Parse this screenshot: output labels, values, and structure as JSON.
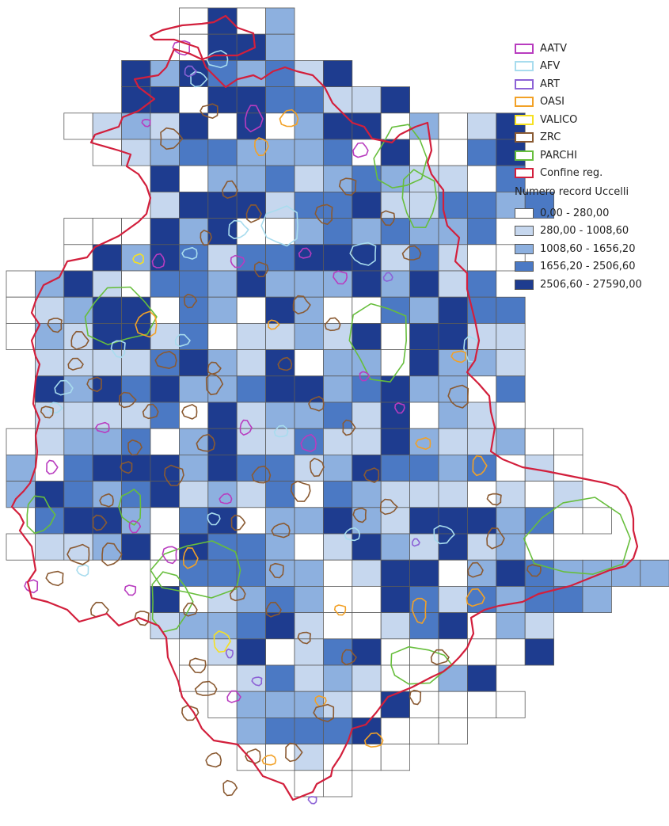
{
  "map": {
    "grid": {
      "rows": [
        {
          "start": 6,
          "values": "0402"
        },
        {
          "start": 6,
          "values": "0442"
        },
        {
          "start": 4,
          "values": "42432314"
        },
        {
          "start": 4,
          "values": "4404433114"
        },
        {
          "start": 2,
          "values": "0121404024402014"
        },
        {
          "start": 3,
          "values": "012332223040034"
        },
        {
          "start": 5,
          "values": "4022312321103"
        },
        {
          "start": 5,
          "values": "14441334113323"
        },
        {
          "start": 2,
          "values": "000424002323223"
        },
        {
          "start": 2,
          "values": "0424313344413100"
        },
        {
          "start": 0,
          "values": "02410332422242413"
        },
        {
          "start": 0,
          "values": "012440320420032433"
        },
        {
          "start": 0,
          "values": "021441301121404411"
        },
        {
          "start": 1,
          "values": "11113421402204221"
        },
        {
          "start": 1,
          "values": "42434223442342203"
        },
        {
          "start": 1,
          "values": "11113041223140210"
        },
        {
          "start": 0,
          "values": "01223024113114211200"
        },
        {
          "start": 0,
          "values": "20344424331243323010"
        },
        {
          "start": 0,
          "values": "24323412130321110101"
        },
        {
          "start": 1,
          "values": "34420340224214442300"
        },
        {
          "start": 0,
          "values": "0112404332014214120"
        },
        {
          "start": 5,
          "values": "033322014402432222"
        },
        {
          "start": 5,
          "values": "4012320043132332"
        },
        {
          "start": 5,
          "values": "12234100134021"
        },
        {
          "start": 6,
          "values": "0140134000004"
        },
        {
          "start": 6,
          "values": "00131210024"
        },
        {
          "start": 7,
          "values": "02221040000"
        },
        {
          "start": 8,
          "values": "23334000"
        },
        {
          "start": 8,
          "values": "001000"
        },
        {
          "start": 10,
          "values": "00"
        }
      ]
    },
    "class_colors": [
      "#ffffff",
      "#c6d7ee",
      "#8db0df",
      "#4b79c4",
      "#1e3c8f"
    ],
    "layer_colors": {
      "AATV": "#b83cbf",
      "AFV": "#a8dcee",
      "ART": "#8c62d6",
      "OASI": "#f2a127",
      "VALICO": "#f6e121",
      "ZRC": "#8a5a32",
      "PARCHI": "#67be3c",
      "Confine reg.": "#d21f3c"
    }
  },
  "legend": {
    "layers": [
      {
        "label": "AATV",
        "color": "#b83cbf"
      },
      {
        "label": "AFV",
        "color": "#a8dcee"
      },
      {
        "label": "ART",
        "color": "#8c62d6"
      },
      {
        "label": "OASI",
        "color": "#f2a127"
      },
      {
        "label": "VALICO",
        "color": "#f6e121"
      },
      {
        "label": "ZRC",
        "color": "#8a5a32"
      },
      {
        "label": "PARCHI",
        "color": "#67be3c"
      },
      {
        "label": "Confine reg.",
        "color": "#d21f3c"
      }
    ],
    "subtitle": "Numero record Uccelli",
    "classes": [
      {
        "label": "0,00 - 280,00",
        "color": "#ffffff"
      },
      {
        "label": "280,00 - 1008,60",
        "color": "#c6d7ee"
      },
      {
        "label": "1008,60 - 1656,20",
        "color": "#8db0df"
      },
      {
        "label": "1656,20 - 2506,60",
        "color": "#4b79c4"
      },
      {
        "label": "2506,60 - 27590,00",
        "color": "#1e3c8f"
      }
    ]
  }
}
